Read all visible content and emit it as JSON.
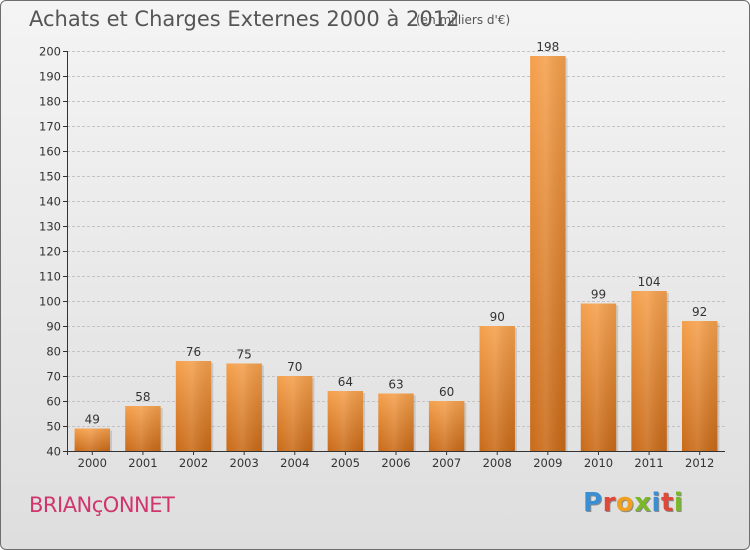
{
  "header": {
    "title": "Achats et Charges Externes 2000 à 2012",
    "subtitle": "(en milliers d'€)"
  },
  "footer": {
    "commune": "BRIANçONNET",
    "logo": {
      "letters": [
        {
          "char": "P",
          "color": "#3a8fd4"
        },
        {
          "char": "r",
          "color": "#e0483a"
        },
        {
          "char": "o",
          "color": "#f0a020"
        },
        {
          "char": "x",
          "color": "#7ab82a"
        },
        {
          "char": "i",
          "color": "#3a8fd4"
        },
        {
          "char": "t",
          "color": "#e0483a"
        },
        {
          "char": "i",
          "color": "#7ab82a"
        }
      ]
    }
  },
  "chart_data": {
    "type": "bar",
    "title": "Achats et Charges Externes 2000 à 2012",
    "subtitle": "(en milliers d'€)",
    "categories": [
      "2000",
      "2001",
      "2002",
      "2003",
      "2004",
      "2005",
      "2006",
      "2007",
      "2008",
      "2009",
      "2010",
      "2011",
      "2012"
    ],
    "values": [
      49,
      58,
      76,
      75,
      70,
      64,
      63,
      60,
      90,
      198,
      99,
      104,
      92
    ],
    "ylim": [
      40,
      200
    ],
    "yticks": [
      40,
      50,
      60,
      70,
      80,
      90,
      100,
      110,
      120,
      130,
      140,
      150,
      160,
      170,
      180,
      190,
      200
    ],
    "grid": true,
    "bar_color_top": "#f5a04c",
    "bar_color_bottom": "#c96a18",
    "grid_color": "#c4c4c4",
    "axis_color": "#333333"
  }
}
